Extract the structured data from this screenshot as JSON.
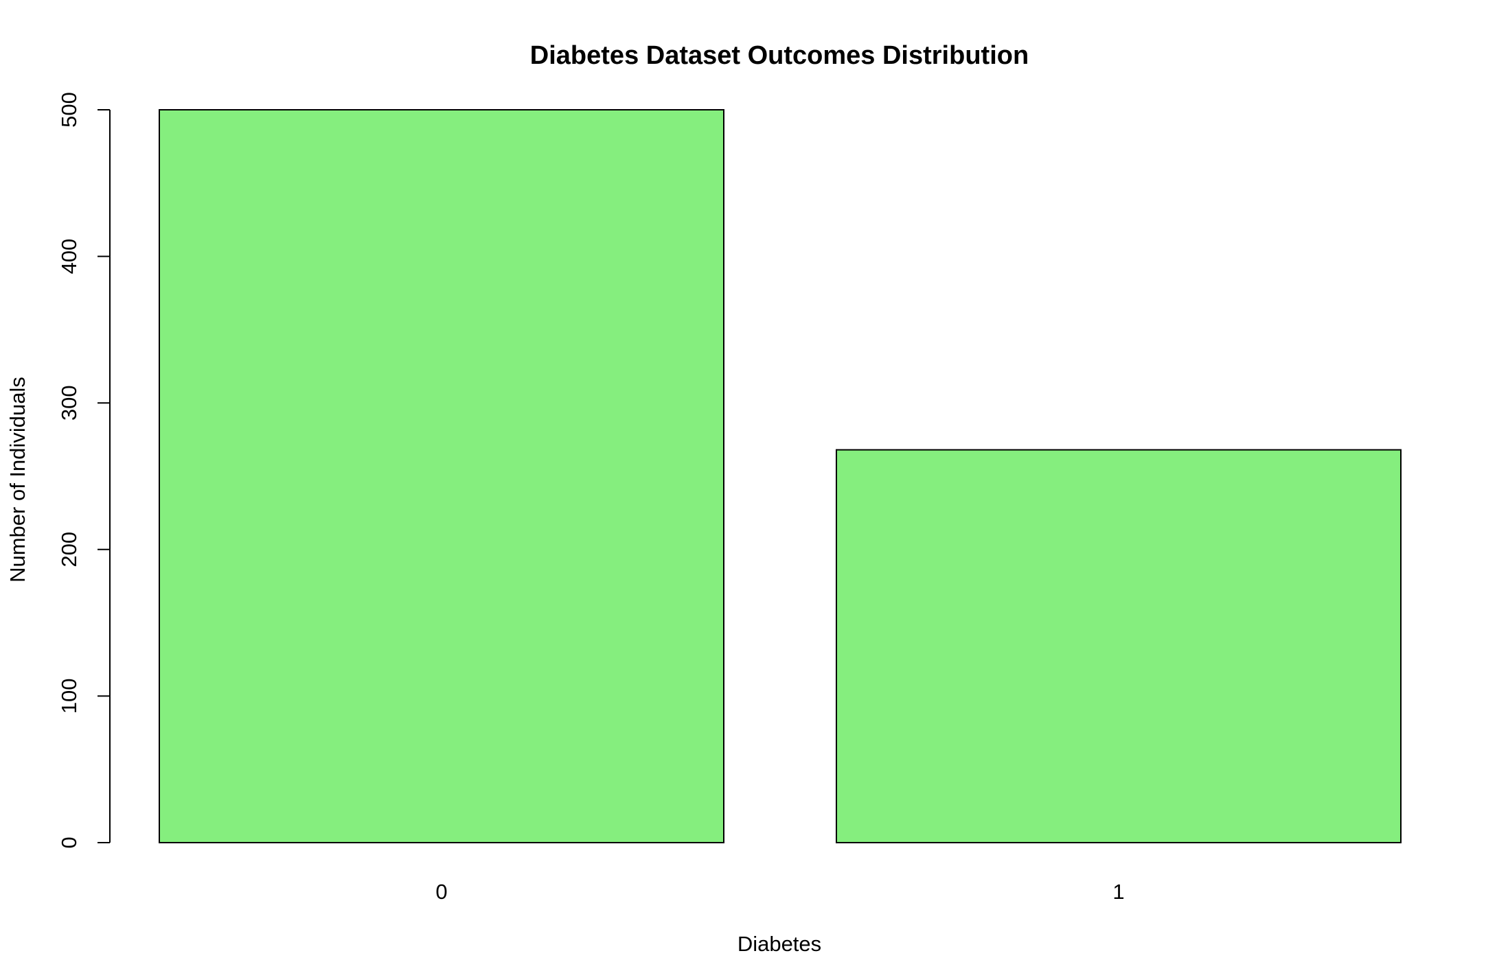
{
  "chart_data": {
    "type": "bar",
    "title": "Diabetes Dataset Outcomes Distribution",
    "xlabel": "Diabetes",
    "ylabel": "Number of Individuals",
    "categories": [
      "0",
      "1"
    ],
    "values": [
      500,
      268
    ],
    "ylim": [
      0,
      500
    ],
    "yticks": [
      0,
      100,
      200,
      300,
      400,
      500
    ],
    "bar_color": "#85ee7e",
    "grid": false,
    "legend": "none"
  }
}
